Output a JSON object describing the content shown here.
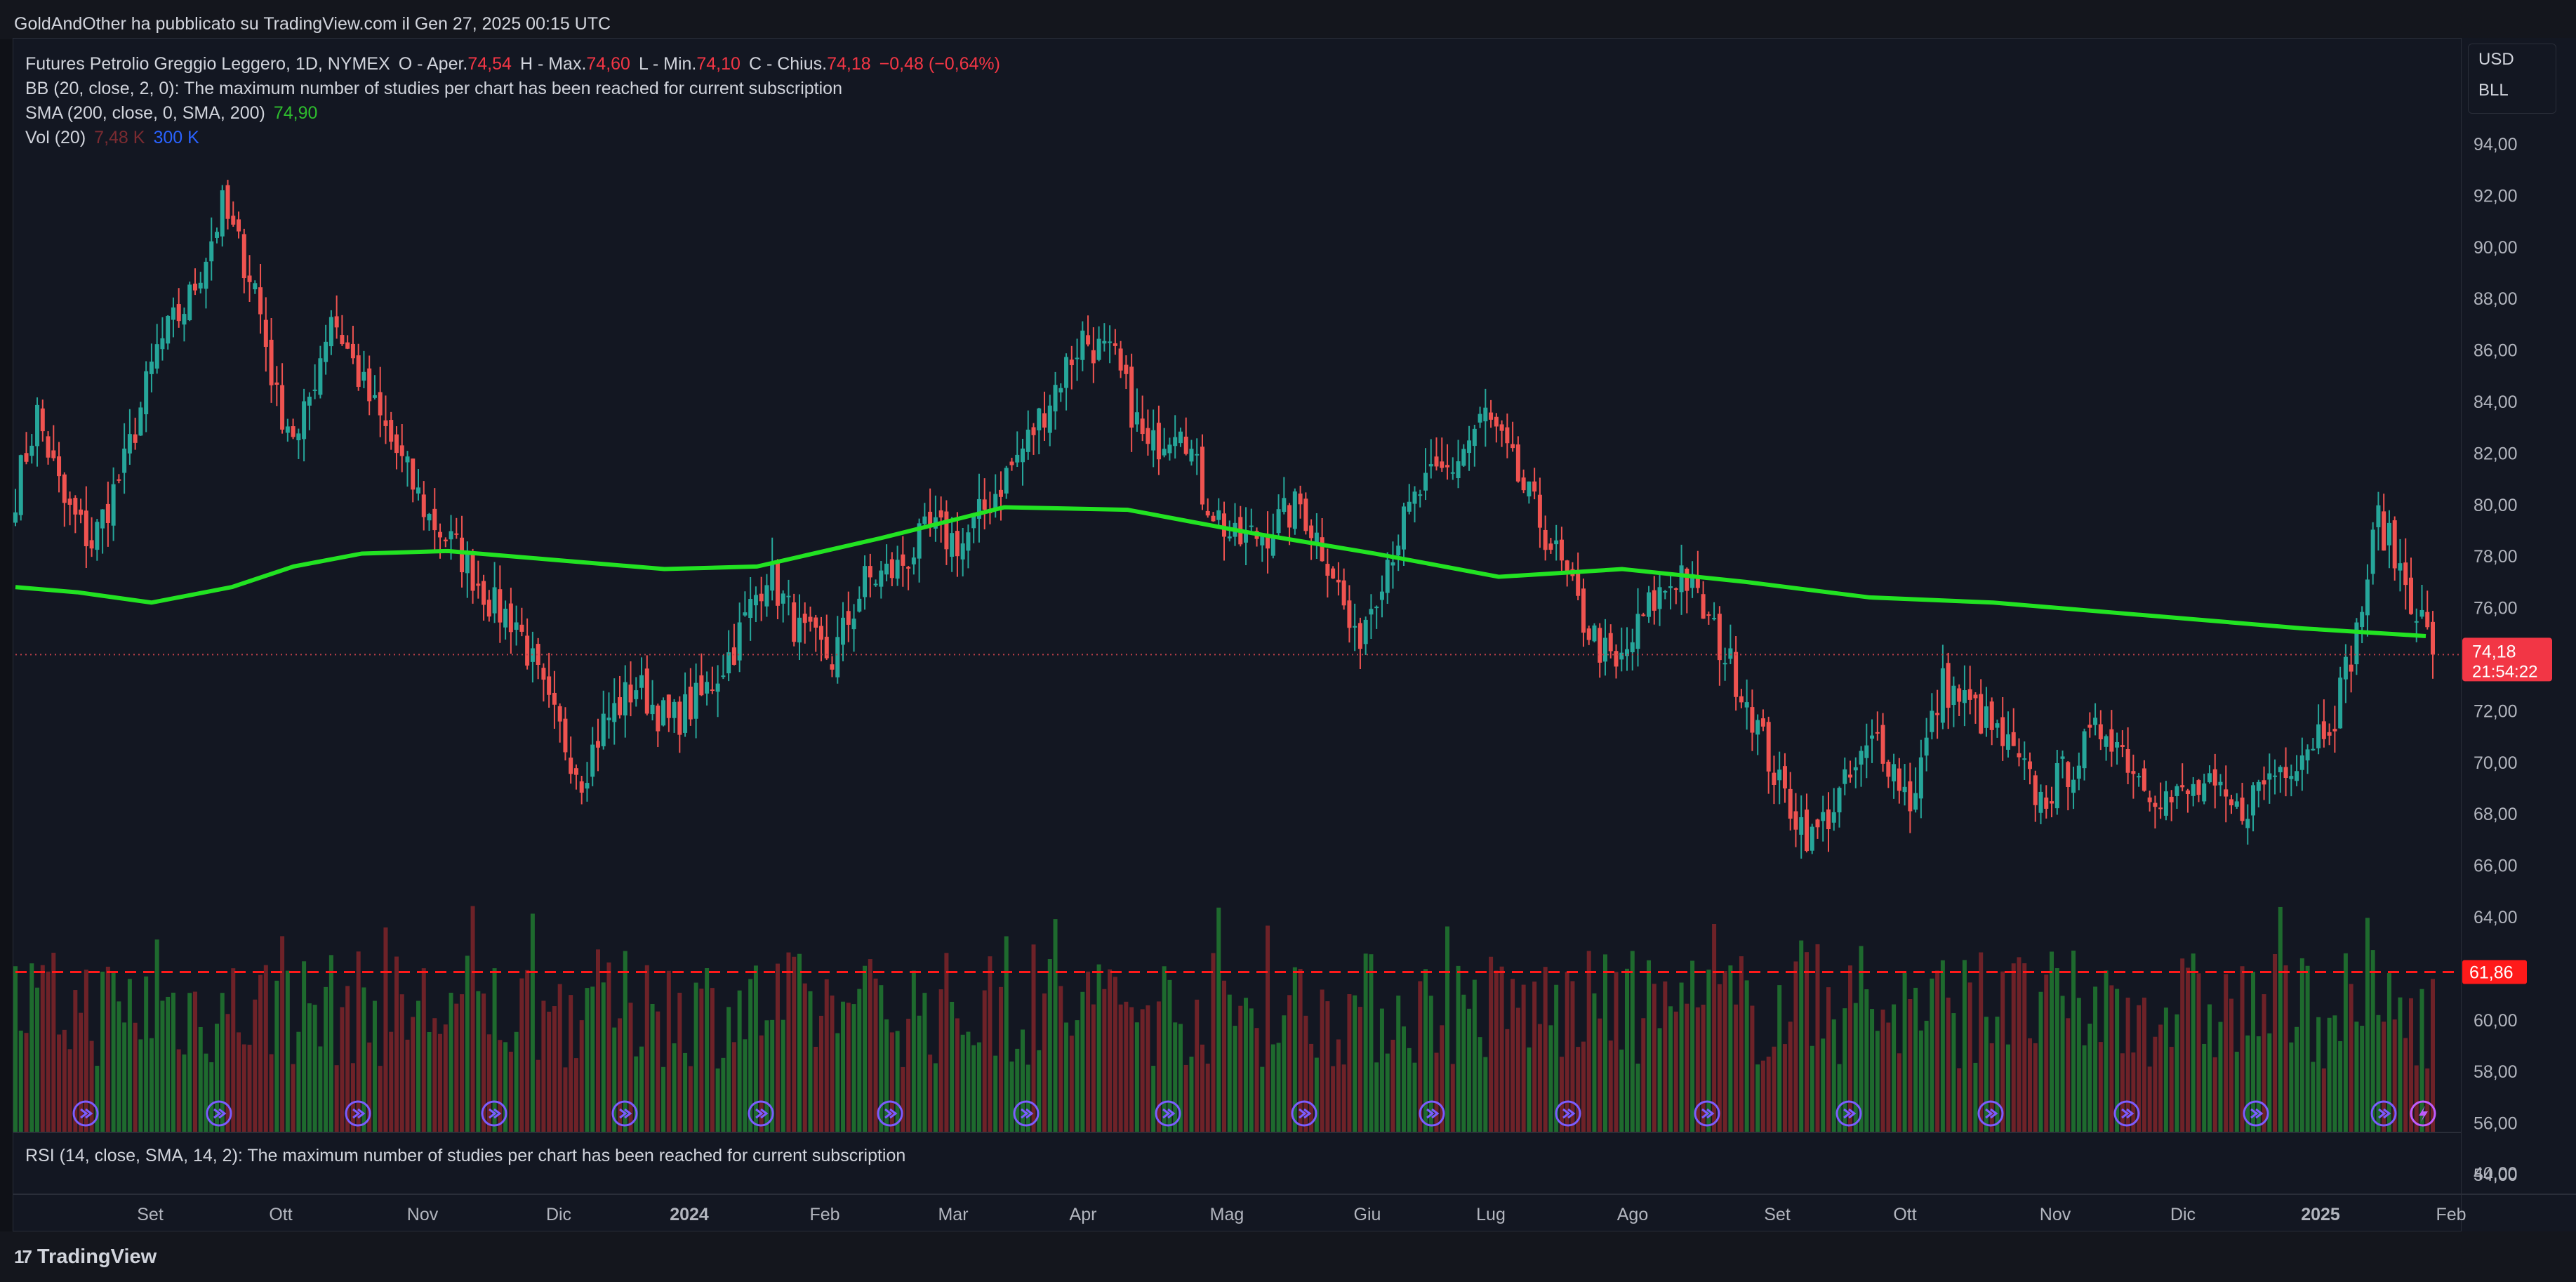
{
  "header": {
    "published": "GoldAndOther ha pubblicato su TradingView.com il Gen 27, 2025 00:15 UTC"
  },
  "legend": {
    "symbol": "Futures Petrolio Greggio Leggero, 1D, NYMEX",
    "o_label": "O - Aper.",
    "o_value": "74,54",
    "h_label": "H - Max.",
    "h_value": "74,60",
    "l_label": "L - Min.",
    "l_value": "74,10",
    "c_label": "C - Chius.",
    "c_value": "74,18",
    "change": "−0,48 (−0,64%)",
    "bb": "BB (20, close, 2, 0): The maximum number of studies per chart has been reached for current subscription",
    "sma_label": "SMA (200, close, 0, SMA, 200)",
    "sma_value": "74,90",
    "vol_label": "Vol (20)",
    "vol_value1": "7,48 K",
    "vol_value2": "300 K"
  },
  "currency": {
    "currency": "USD",
    "unit": "BLL"
  },
  "rsi": {
    "label": "RSI (14, close, SMA, 14, 2): The maximum number of studies per chart has been reached for current subscription"
  },
  "footer": {
    "brand": "TradingView",
    "mark": "17"
  },
  "colors": {
    "up": "#26a69a",
    "down": "#ef5350",
    "sma": "#22e322",
    "level": "#ff1a1a",
    "vol_up": "#1e6a2e",
    "vol_down": "#6e2228",
    "event": "#7b5cff"
  },
  "chart_data": {
    "type": "candlestick",
    "title": "Futures Petrolio Greggio Leggero, 1D, NYMEX",
    "y_axis_ticks": [
      "94,00",
      "92,00",
      "90,00",
      "88,00",
      "86,00",
      "84,00",
      "82,00",
      "80,00",
      "78,00",
      "76,00",
      "74,00",
      "72,00",
      "70,00",
      "68,00",
      "66,00",
      "64,00",
      "62,00",
      "60,00",
      "58,00",
      "56,00",
      "54,00"
    ],
    "rsi_axis_tick": "40,00",
    "ylim": [
      53,
      95
    ],
    "x_axis_labels": [
      "Set",
      "Ott",
      "Nov",
      "Dic",
      "2024",
      "Feb",
      "Mar",
      "Apr",
      "Mag",
      "Giu",
      "Lug",
      "Ago",
      "Set",
      "Ott",
      "Nov",
      "Dic",
      "2025",
      "Feb"
    ],
    "price_label": "74,18",
    "countdown": "21:54:22",
    "level_label": "61,86",
    "level_value": 61.86,
    "last_close": 74.18,
    "close_anchors": [
      [
        0,
        80.5
      ],
      [
        4,
        83.5
      ],
      [
        9,
        80.0
      ],
      [
        14,
        78.5
      ],
      [
        20,
        81.5
      ],
      [
        26,
        86.0
      ],
      [
        32,
        88.0
      ],
      [
        38,
        91.5
      ],
      [
        44,
        88.5
      ],
      [
        48,
        84.0
      ],
      [
        52,
        82.5
      ],
      [
        58,
        87.5
      ],
      [
        64,
        84.5
      ],
      [
        70,
        82.0
      ],
      [
        76,
        79.5
      ],
      [
        82,
        78.0
      ],
      [
        88,
        76.0
      ],
      [
        92,
        75.5
      ],
      [
        98,
        72.0
      ],
      [
        104,
        69.5
      ],
      [
        108,
        71.5
      ],
      [
        114,
        73.0
      ],
      [
        120,
        71.5
      ],
      [
        126,
        72.5
      ],
      [
        132,
        74.5
      ],
      [
        138,
        77.5
      ],
      [
        144,
        75.0
      ],
      [
        150,
        74.0
      ],
      [
        156,
        77.0
      ],
      [
        162,
        77.5
      ],
      [
        168,
        79.0
      ],
      [
        174,
        78.5
      ],
      [
        180,
        80.5
      ],
      [
        186,
        82.5
      ],
      [
        192,
        85.0
      ],
      [
        196,
        86.5
      ],
      [
        202,
        85.5
      ],
      [
        208,
        82.0
      ],
      [
        214,
        83.5
      ],
      [
        218,
        80.5
      ],
      [
        224,
        78.5
      ],
      [
        230,
        79.0
      ],
      [
        236,
        80.0
      ],
      [
        242,
        77.5
      ],
      [
        246,
        74.5
      ],
      [
        252,
        78.0
      ],
      [
        258,
        80.5
      ],
      [
        264,
        81.5
      ],
      [
        270,
        83.5
      ],
      [
        276,
        81.0
      ],
      [
        282,
        78.5
      ],
      [
        288,
        75.5
      ],
      [
        294,
        73.5
      ],
      [
        300,
        76.0
      ],
      [
        306,
        77.5
      ],
      [
        312,
        75.0
      ],
      [
        318,
        72.5
      ],
      [
        324,
        69.0
      ],
      [
        330,
        67.0
      ],
      [
        336,
        69.0
      ],
      [
        342,
        71.0
      ],
      [
        348,
        68.5
      ],
      [
        354,
        73.0
      ],
      [
        360,
        72.0
      ],
      [
        366,
        70.5
      ],
      [
        372,
        68.5
      ],
      [
        378,
        70.0
      ],
      [
        384,
        71.5
      ],
      [
        390,
        69.5
      ],
      [
        396,
        68.5
      ],
      [
        402,
        69.0
      ],
      [
        408,
        68.0
      ],
      [
        414,
        69.5
      ],
      [
        420,
        70.5
      ],
      [
        426,
        72.0
      ],
      [
        430,
        75.0
      ],
      [
        434,
        79.5
      ],
      [
        438,
        77.5
      ],
      [
        442,
        75.5
      ],
      [
        444,
        74.18
      ]
    ],
    "sma_200": [
      [
        0,
        76.8
      ],
      [
        20,
        76.6
      ],
      [
        44,
        76.2
      ],
      [
        70,
        76.8
      ],
      [
        90,
        77.6
      ],
      [
        112,
        78.1
      ],
      [
        140,
        78.2
      ],
      [
        170,
        77.9
      ],
      [
        210,
        77.5
      ],
      [
        240,
        77.6
      ],
      [
        280,
        78.7
      ],
      [
        320,
        79.9
      ],
      [
        360,
        79.8
      ],
      [
        400,
        78.9
      ],
      [
        440,
        78.1
      ],
      [
        480,
        77.2
      ],
      [
        520,
        77.5
      ],
      [
        560,
        77.0
      ],
      [
        600,
        76.4
      ],
      [
        640,
        76.2
      ],
      [
        680,
        75.8
      ],
      [
        700,
        75.6
      ],
      [
        740,
        75.2
      ],
      [
        780,
        74.9
      ]
    ],
    "event_markers": 18
  }
}
